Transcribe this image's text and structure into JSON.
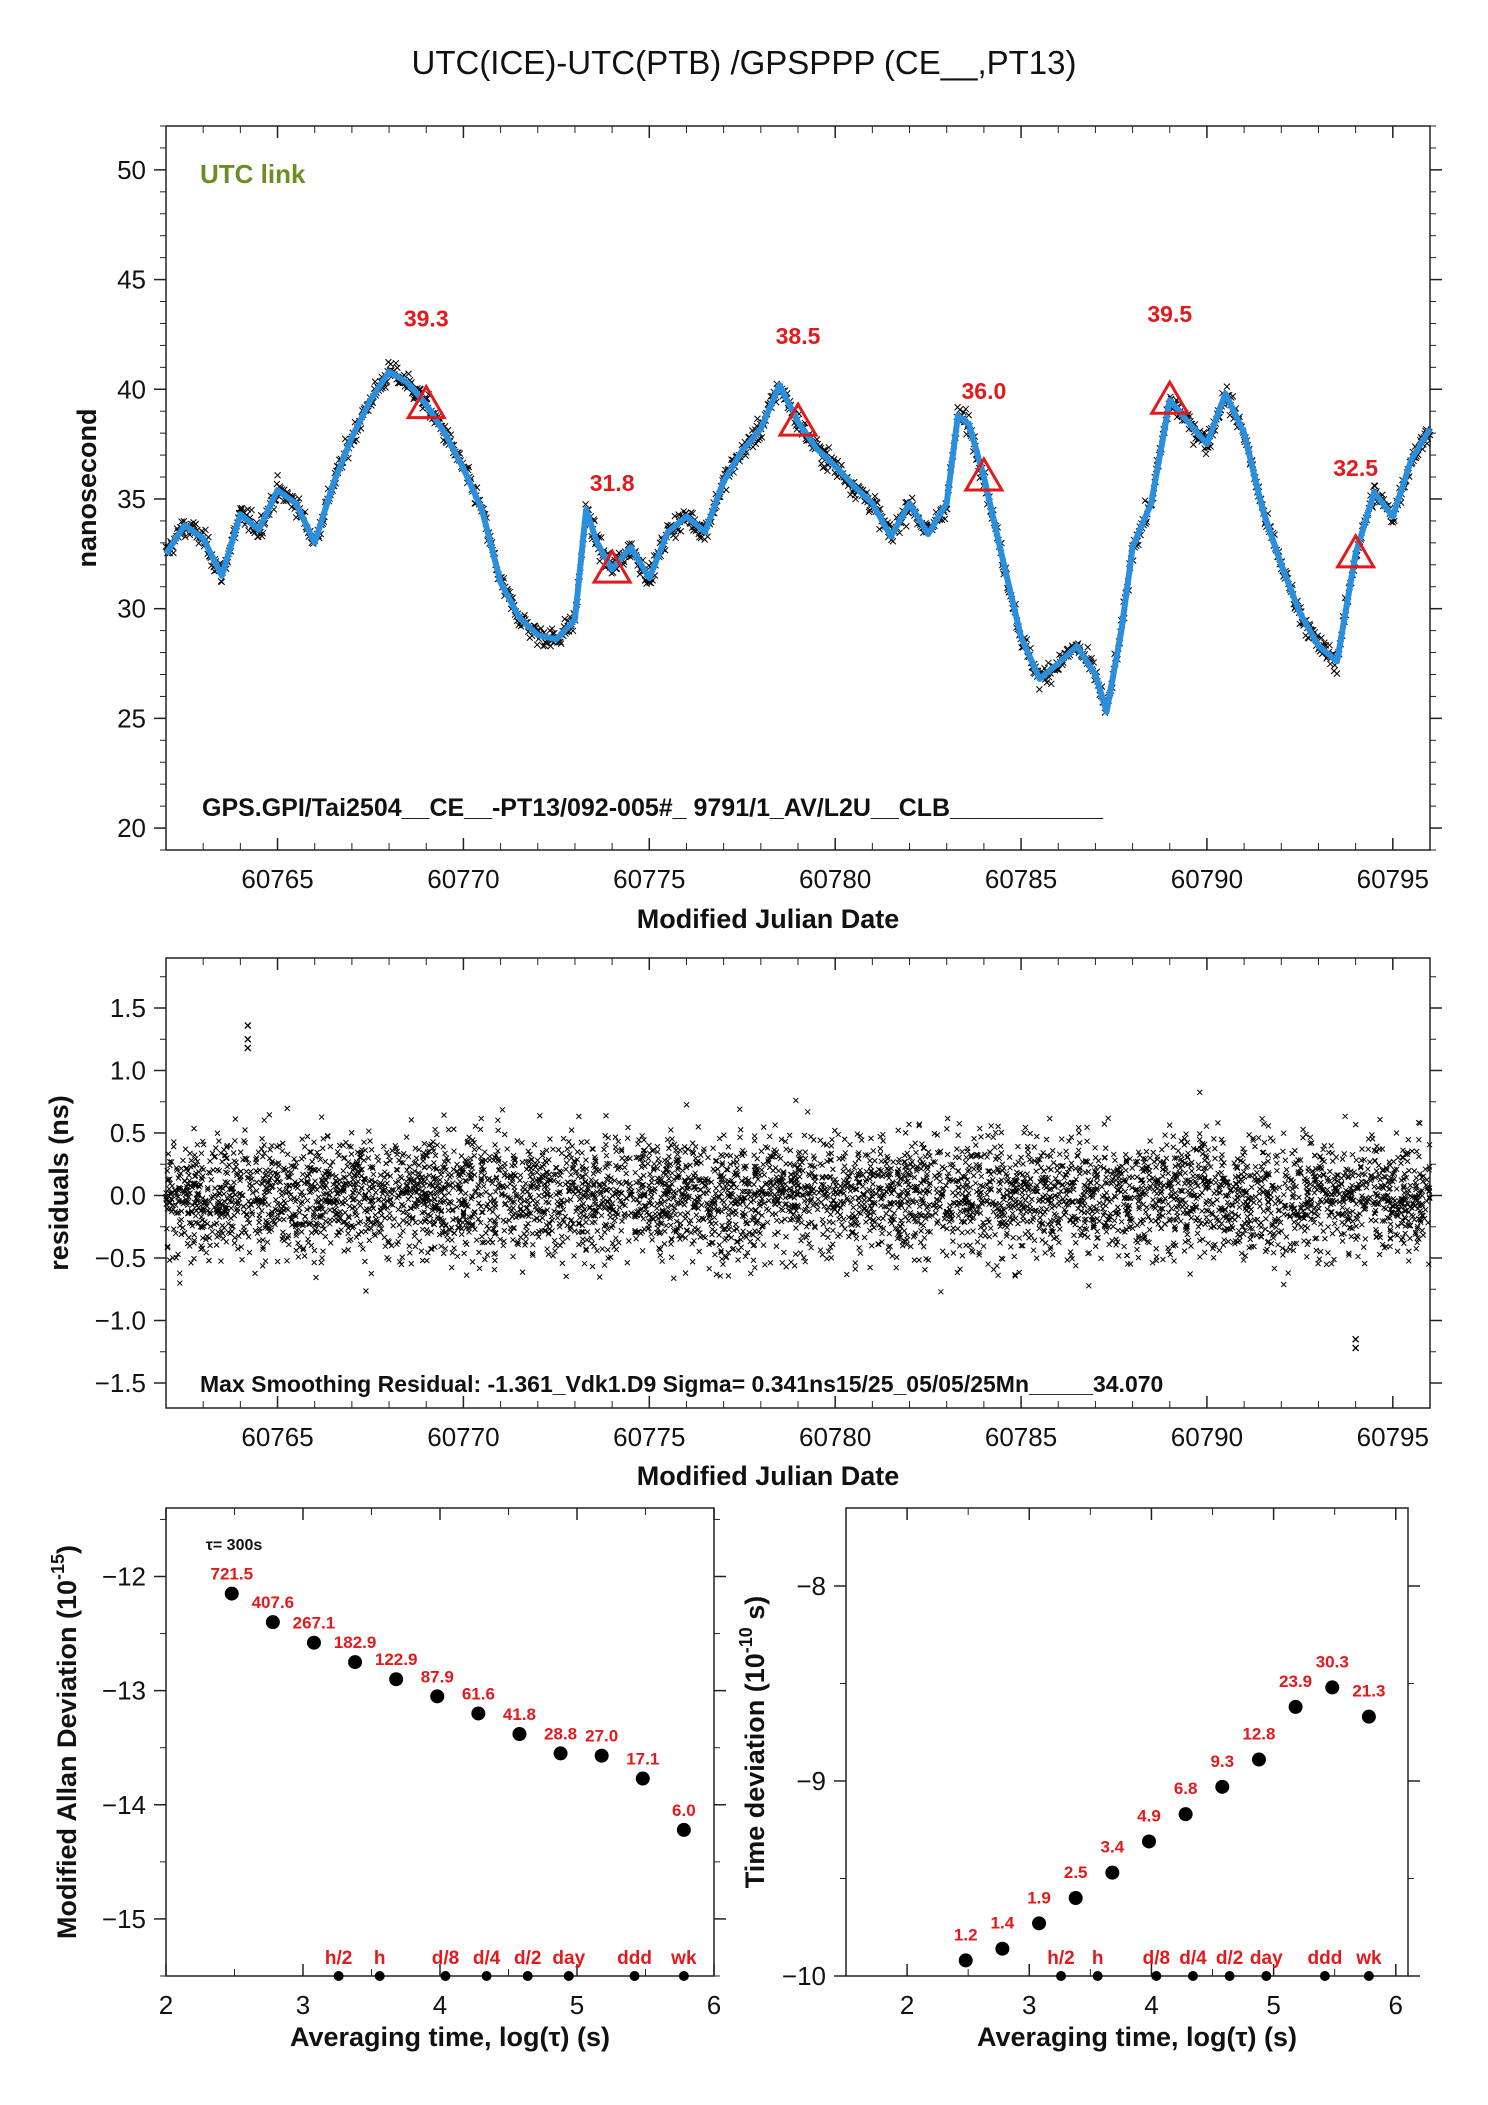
{
  "title": "UTC(ICE)-UTC(PTB)  /GPSPPP  (CE__,PT13)",
  "colors": {
    "fit": "#2a8fdc",
    "markers": "#e3191c",
    "points": "#000000",
    "link_label": "#6b8e23"
  },
  "chart_data": [
    {
      "id": "timeseries",
      "type": "scatter",
      "xlabel": "Modified Julian Date",
      "ylabel": "nanosecond",
      "xlim": [
        60762,
        60796
      ],
      "ylim": [
        19,
        52
      ],
      "xticks": [
        60765,
        60770,
        60775,
        60780,
        60785,
        60790,
        60795
      ],
      "yticks": [
        20,
        25,
        30,
        35,
        40,
        45,
        50
      ],
      "grid": false,
      "link_label": "UTC link",
      "footer": "GPS.GPI/Tai2504__CE__-PT13/092-005#_  9791/1_AV/L2U__CLB___________",
      "trace": [
        [
          60762.0,
          32.5
        ],
        [
          60762.5,
          33.8
        ],
        [
          60763.0,
          33.2
        ],
        [
          60763.5,
          31.5
        ],
        [
          60764.0,
          34.3
        ],
        [
          60764.5,
          33.6
        ],
        [
          60765.0,
          35.4
        ],
        [
          60765.5,
          34.8
        ],
        [
          60766.0,
          33.0
        ],
        [
          60766.5,
          35.7
        ],
        [
          60767.0,
          37.8
        ],
        [
          60767.5,
          39.5
        ],
        [
          60768.0,
          40.8
        ],
        [
          60768.5,
          40.3
        ],
        [
          60769.0,
          39.3
        ],
        [
          60769.5,
          38.0
        ],
        [
          60770.0,
          36.4
        ],
        [
          60770.5,
          34.5
        ],
        [
          60771.0,
          31.2
        ],
        [
          60771.5,
          29.6
        ],
        [
          60772.0,
          28.8
        ],
        [
          60772.5,
          28.6
        ],
        [
          60773.0,
          29.5
        ],
        [
          60773.3,
          34.5
        ],
        [
          60773.6,
          33.0
        ],
        [
          60774.0,
          31.8
        ],
        [
          60774.5,
          32.8
        ],
        [
          60775.0,
          31.4
        ],
        [
          60775.5,
          33.5
        ],
        [
          60776.0,
          34.2
        ],
        [
          60776.5,
          33.5
        ],
        [
          60777.0,
          35.8
        ],
        [
          60777.5,
          37.2
        ],
        [
          60778.0,
          38.2
        ],
        [
          60778.5,
          40.2
        ],
        [
          60779.0,
          38.5
        ],
        [
          60779.5,
          37.3
        ],
        [
          60780.0,
          36.5
        ],
        [
          60780.5,
          35.6
        ],
        [
          60781.0,
          34.8
        ],
        [
          60781.5,
          33.3
        ],
        [
          60782.0,
          34.8
        ],
        [
          60782.5,
          33.4
        ],
        [
          60783.0,
          34.8
        ],
        [
          60783.3,
          38.8
        ],
        [
          60783.6,
          38.4
        ],
        [
          60784.0,
          36.0
        ],
        [
          60784.5,
          32.3
        ],
        [
          60785.0,
          28.7
        ],
        [
          60785.5,
          26.8
        ],
        [
          60786.0,
          27.5
        ],
        [
          60786.5,
          28.3
        ],
        [
          60787.0,
          27.0
        ],
        [
          60787.3,
          25.3
        ],
        [
          60787.7,
          29.0
        ],
        [
          60788.0,
          32.8
        ],
        [
          60788.5,
          34.8
        ],
        [
          60789.0,
          39.5
        ],
        [
          60789.5,
          38.5
        ],
        [
          60790.0,
          37.5
        ],
        [
          60790.5,
          39.8
        ],
        [
          60791.0,
          38.0
        ],
        [
          60791.5,
          34.5
        ],
        [
          60792.0,
          32.0
        ],
        [
          60792.5,
          29.8
        ],
        [
          60793.0,
          28.3
        ],
        [
          60793.5,
          27.6
        ],
        [
          60794.0,
          32.5
        ],
        [
          60794.5,
          35.3
        ],
        [
          60795.0,
          34.2
        ],
        [
          60795.5,
          36.8
        ],
        [
          60796.0,
          38.2
        ]
      ],
      "markers": [
        {
          "x": 60769,
          "y": 39.3,
          "label": "39.3"
        },
        {
          "x": 60774,
          "y": 31.8,
          "label": "31.8"
        },
        {
          "x": 60779,
          "y": 38.5,
          "label": "38.5"
        },
        {
          "x": 60784,
          "y": 36.0,
          "label": "36.0"
        },
        {
          "x": 60789,
          "y": 39.5,
          "label": "39.5"
        },
        {
          "x": 60794,
          "y": 32.5,
          "label": "32.5"
        }
      ]
    },
    {
      "id": "residuals",
      "type": "scatter",
      "xlabel": "Modified Julian Date",
      "ylabel": "residuals (ns)",
      "xlim": [
        60762,
        60796
      ],
      "ylim": [
        -1.7,
        1.9
      ],
      "xticks": [
        60765,
        60770,
        60775,
        60780,
        60785,
        60790,
        60795
      ],
      "yticks": [
        -1.5,
        -1.0,
        -0.5,
        0.0,
        0.5,
        1.0,
        1.5
      ],
      "ytick_labels": [
        "−1.5",
        "−1.0",
        "−0.5",
        "0.0",
        "0.5",
        "1.0",
        "1.5"
      ],
      "sigma_ns": 0.341,
      "max_residual_ns": -1.361,
      "footer": "Max Smoothing Residual: -1.361_Vdk1.D9  Sigma= 0.341ns15/25_05/05/25Mn_____34.070"
    },
    {
      "id": "mdev",
      "type": "scatter",
      "xlabel": "Averaging time, log(τ) (s)",
      "ylabel": "Modified Allan Deviation (10",
      "ylabel_sup": "-15",
      "ylabel_end": ")",
      "xlim": [
        2,
        6
      ],
      "ylim": [
        -15.5,
        -11.4
      ],
      "xticks": [
        2,
        3,
        4,
        5,
        6
      ],
      "yticks": [
        -12,
        -13,
        -14,
        -15
      ],
      "ytick_labels": [
        "−12",
        "−13",
        "−14",
        "−15"
      ],
      "tau_note": "τ= 300s",
      "points": [
        {
          "x": 2.48,
          "y": -12.15,
          "label": "721.5"
        },
        {
          "x": 2.78,
          "y": -12.4,
          "label": "407.6"
        },
        {
          "x": 3.08,
          "y": -12.58,
          "label": "267.1"
        },
        {
          "x": 3.38,
          "y": -12.75,
          "label": "182.9"
        },
        {
          "x": 3.68,
          "y": -12.9,
          "label": "122.9"
        },
        {
          "x": 3.98,
          "y": -13.05,
          "label": "87.9"
        },
        {
          "x": 4.28,
          "y": -13.2,
          "label": "61.6"
        },
        {
          "x": 4.58,
          "y": -13.38,
          "label": "41.8"
        },
        {
          "x": 4.88,
          "y": -13.55,
          "label": "28.8"
        },
        {
          "x": 5.18,
          "y": -13.57,
          "label": "27.0"
        },
        {
          "x": 5.48,
          "y": -13.77,
          "label": "17.1"
        },
        {
          "x": 5.78,
          "y": -14.22,
          "label": "6.0"
        }
      ],
      "reference_marks": [
        {
          "x": 3.26,
          "label": "h/2"
        },
        {
          "x": 3.56,
          "label": "h"
        },
        {
          "x": 4.04,
          "label": "d/8"
        },
        {
          "x": 4.34,
          "label": "d/4"
        },
        {
          "x": 4.64,
          "label": "d/2"
        },
        {
          "x": 4.94,
          "label": "day"
        },
        {
          "x": 5.42,
          "label": "ddd"
        },
        {
          "x": 5.78,
          "label": "wk"
        }
      ]
    },
    {
      "id": "tdev",
      "type": "scatter",
      "xlabel": "Averaging time, log(τ) (s)",
      "ylabel": "Time deviation (10",
      "ylabel_sup": "-10",
      "ylabel_end": " s)",
      "xlim": [
        1.5,
        6.1
      ],
      "ylim": [
        -10.0,
        -7.6
      ],
      "xticks": [
        2,
        3,
        4,
        5,
        6
      ],
      "yticks": [
        -8,
        -9,
        -10
      ],
      "ytick_labels": [
        "−8",
        "−9",
        "−10"
      ],
      "points": [
        {
          "x": 2.48,
          "y": -9.92,
          "label": "1.2"
        },
        {
          "x": 2.78,
          "y": -9.86,
          "label": "1.4"
        },
        {
          "x": 3.08,
          "y": -9.73,
          "label": "1.9"
        },
        {
          "x": 3.38,
          "y": -9.6,
          "label": "2.5"
        },
        {
          "x": 3.68,
          "y": -9.47,
          "label": "3.4"
        },
        {
          "x": 3.98,
          "y": -9.31,
          "label": "4.9"
        },
        {
          "x": 4.28,
          "y": -9.17,
          "label": "6.8"
        },
        {
          "x": 4.58,
          "y": -9.03,
          "label": "9.3"
        },
        {
          "x": 4.88,
          "y": -8.89,
          "label": "12.8"
        },
        {
          "x": 5.18,
          "y": -8.62,
          "label": "23.9"
        },
        {
          "x": 5.48,
          "y": -8.52,
          "label": "30.3"
        },
        {
          "x": 5.78,
          "y": -8.67,
          "label": "21.3"
        }
      ],
      "reference_marks": [
        {
          "x": 3.26,
          "label": "h/2"
        },
        {
          "x": 3.56,
          "label": "h"
        },
        {
          "x": 4.04,
          "label": "d/8"
        },
        {
          "x": 4.34,
          "label": "d/4"
        },
        {
          "x": 4.64,
          "label": "d/2"
        },
        {
          "x": 4.94,
          "label": "day"
        },
        {
          "x": 5.42,
          "label": "ddd"
        },
        {
          "x": 5.78,
          "label": "wk"
        }
      ]
    }
  ]
}
